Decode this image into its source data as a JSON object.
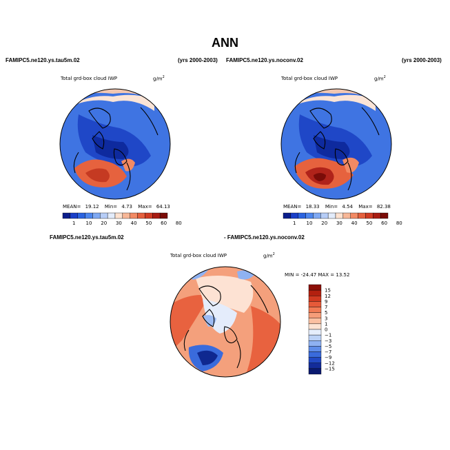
{
  "title": "ANN",
  "panel1": {
    "case": "FAMIPC5.ne120.ys.tau5m.02",
    "years": "(yrs 2000-2003)",
    "variable": "Total grd-box cloud IWP",
    "units": "g/m",
    "units_sup": "2",
    "stats": {
      "mean_label": "MEAN=",
      "mean": "19.12",
      "min_label": "Min=",
      "min": "4.73",
      "max_label": "Max=",
      "max": "64.13"
    }
  },
  "panel2": {
    "case": "FAMIPC5.ne120.ys.noconv.02",
    "years": "(yrs 2000-2003)",
    "variable": "Total grd-box cloud IWP",
    "units": "g/m",
    "units_sup": "2",
    "stats": {
      "mean_label": "MEAN=",
      "mean": "18.33",
      "min_label": "Min=",
      "min": "4.54",
      "max_label": "Max=",
      "max": "82.38"
    }
  },
  "panel3": {
    "case_a": "FAMIPC5.ne120.ys.tau5m.02",
    "case_b": "- FAMIPC5.ne120.ys.noconv.02",
    "variable": "Total grd-box cloud IWP",
    "units": "g/m",
    "units_sup": "2",
    "minmax": "MIN = -24.47  MAX =  13.52"
  },
  "colorbar_top": {
    "labels": [
      "1",
      "10",
      "20",
      "30",
      "40",
      "50",
      "60",
      "80"
    ],
    "colors": [
      "#0b1e8c",
      "#1a3fc8",
      "#2b63e0",
      "#4d86ee",
      "#7fa9f3",
      "#b6cdf7",
      "#e3ecfb",
      "#fde2d0",
      "#f7b797",
      "#f28a64",
      "#e5603e",
      "#cf3c23",
      "#a81c12",
      "#7a0c08"
    ]
  },
  "colorbar_diff": {
    "labels": [
      "15",
      "12",
      "9",
      "7",
      "5",
      "3",
      "1",
      "0",
      "−1",
      "−3",
      "−5",
      "−7",
      "−9",
      "−12",
      "−15"
    ],
    "colors": [
      "#8c0f07",
      "#b3200f",
      "#d13a21",
      "#e65a39",
      "#f17b55",
      "#f69d79",
      "#fbc0a2",
      "#fde3d3",
      "#e6eefc",
      "#bcd2f7",
      "#8fb2f2",
      "#5f8de9",
      "#3a6bdc",
      "#2249c4",
      "#132c9a",
      "#0a1a70"
    ]
  }
}
